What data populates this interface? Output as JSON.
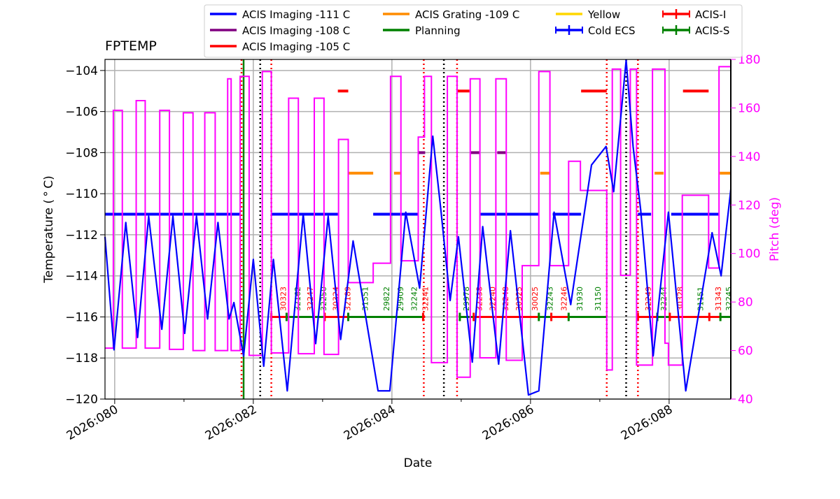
{
  "chart_data": {
    "type": "line",
    "title": "FPTEMP",
    "xlabel": "Date",
    "ylabel": "Temperature ($^\\circ$C)",
    "ylabel_display": "Temperature ( ° C)",
    "y2label": "Pitch (deg)",
    "xlim": [
      79.86,
      88.89
    ],
    "ylim": [
      -120,
      -103.46
    ],
    "y2lim": [
      40,
      180
    ],
    "grid": true,
    "legend_placement": "top",
    "x_ticks": [
      {
        "v": 80,
        "label": "2026:080"
      },
      {
        "v": 82,
        "label": "2026:082"
      },
      {
        "v": 84,
        "label": "2026:084"
      },
      {
        "v": 86,
        "label": "2026:086"
      },
      {
        "v": 88,
        "label": "2026:088"
      }
    ],
    "y_ticks": [
      -120,
      -118,
      -116,
      -114,
      -112,
      -110,
      -108,
      -106,
      -104
    ],
    "y_tick_labels": [
      "−120",
      "−118",
      "−116",
      "−114",
      "−112",
      "−110",
      "−108",
      "−106",
      "−104"
    ],
    "y2_ticks": [
      40,
      60,
      80,
      100,
      120,
      140,
      160,
      180
    ],
    "colors": {
      "temp": "#0000ff",
      "pitch": "#ff00ff",
      "m111": "#0000ff",
      "m108": "#800080",
      "m105": "#ff0000",
      "m109": "#ff8c00",
      "planning": "#008000",
      "yellow": "#ffd700",
      "acis_i": "#ff0000",
      "acis_s": "#008000"
    },
    "legend": [
      {
        "label": "ACIS Imaging -111 C",
        "color": "#0000ff",
        "style": "line"
      },
      {
        "label": "ACIS Imaging -108 C",
        "color": "#800080",
        "style": "line"
      },
      {
        "label": "ACIS Imaging -105 C",
        "color": "#ff0000",
        "style": "line"
      },
      {
        "label": "ACIS Grating -109 C",
        "color": "#ff8c00",
        "style": "line"
      },
      {
        "label": "Planning",
        "color": "#008000",
        "style": "line"
      },
      {
        "label": "Yellow",
        "color": "#ffd700",
        "style": "line"
      },
      {
        "label": "Cold ECS",
        "color": "#0000ff",
        "style": "errorbar"
      },
      {
        "label": "ACIS-I",
        "color": "#ff0000",
        "style": "errorbar"
      },
      {
        "label": "ACIS-S",
        "color": "#008000",
        "style": "errorbar"
      }
    ],
    "temperature": [
      [
        79.86,
        -112.1
      ],
      [
        79.99,
        -117.6
      ],
      [
        80.16,
        -111.4
      ],
      [
        80.33,
        -117.0
      ],
      [
        80.49,
        -111.1
      ],
      [
        80.68,
        -116.6
      ],
      [
        80.84,
        -111.1
      ],
      [
        81.01,
        -116.8
      ],
      [
        81.18,
        -111.1
      ],
      [
        81.34,
        -116.1
      ],
      [
        81.49,
        -111.4
      ],
      [
        81.65,
        -116.1
      ],
      [
        81.72,
        -115.3
      ],
      [
        81.86,
        -117.9
      ],
      [
        82.0,
        -113.2
      ],
      [
        82.15,
        -118.4
      ],
      [
        82.29,
        -113.2
      ],
      [
        82.49,
        -119.6
      ],
      [
        82.72,
        -111.0
      ],
      [
        82.9,
        -117.3
      ],
      [
        83.08,
        -111.1
      ],
      [
        83.26,
        -117.1
      ],
      [
        83.44,
        -112.3
      ],
      [
        83.8,
        -119.6
      ],
      [
        83.97,
        -119.6
      ],
      [
        84.2,
        -110.9
      ],
      [
        84.4,
        -114.6
      ],
      [
        84.59,
        -107.2
      ],
      [
        84.71,
        -110.9
      ],
      [
        84.84,
        -115.2
      ],
      [
        84.96,
        -112.1
      ],
      [
        85.16,
        -118.2
      ],
      [
        85.31,
        -111.6
      ],
      [
        85.54,
        -118.3
      ],
      [
        85.71,
        -111.8
      ],
      [
        85.97,
        -119.8
      ],
      [
        86.12,
        -119.6
      ],
      [
        86.34,
        -110.9
      ],
      [
        86.58,
        -115.4
      ],
      [
        86.88,
        -108.6
      ],
      [
        87.09,
        -107.7
      ],
      [
        87.2,
        -109.9
      ],
      [
        87.38,
        -103.5
      ],
      [
        87.48,
        -107.7
      ],
      [
        87.59,
        -110.8
      ],
      [
        87.77,
        -117.9
      ],
      [
        87.99,
        -110.9
      ],
      [
        88.24,
        -119.6
      ],
      [
        88.62,
        -111.9
      ],
      [
        88.75,
        -114.0
      ],
      [
        88.89,
        -109.8
      ]
    ],
    "pitch_steps": [
      [
        79.86,
        61
      ],
      [
        79.98,
        159
      ],
      [
        80.11,
        61
      ],
      [
        80.31,
        163
      ],
      [
        80.44,
        61
      ],
      [
        80.65,
        159
      ],
      [
        80.79,
        60.5
      ],
      [
        80.99,
        158
      ],
      [
        81.13,
        60
      ],
      [
        81.3,
        158
      ],
      [
        81.45,
        60
      ],
      [
        81.63,
        172
      ],
      [
        81.68,
        60
      ],
      [
        81.81,
        173
      ],
      [
        81.94,
        58
      ],
      [
        82.13,
        175
      ],
      [
        82.26,
        59
      ],
      [
        82.51,
        164
      ],
      [
        82.65,
        58.7
      ],
      [
        82.88,
        164
      ],
      [
        83.02,
        58.4
      ],
      [
        83.23,
        147
      ],
      [
        83.37,
        88
      ],
      [
        83.73,
        96
      ],
      [
        83.98,
        173
      ],
      [
        84.13,
        97
      ],
      [
        84.38,
        148
      ],
      [
        84.47,
        173
      ],
      [
        84.57,
        55
      ],
      [
        84.8,
        173
      ],
      [
        84.94,
        49
      ],
      [
        85.13,
        172
      ],
      [
        85.27,
        57
      ],
      [
        85.5,
        172
      ],
      [
        85.65,
        56
      ],
      [
        85.88,
        95
      ],
      [
        86.12,
        175
      ],
      [
        86.28,
        95
      ],
      [
        86.55,
        138
      ],
      [
        86.72,
        126
      ],
      [
        87.1,
        52
      ],
      [
        87.18,
        176
      ],
      [
        87.3,
        91
      ],
      [
        87.44,
        176
      ],
      [
        87.53,
        54
      ],
      [
        87.76,
        176
      ],
      [
        87.94,
        63
      ],
      [
        87.99,
        54
      ],
      [
        88.19,
        124
      ],
      [
        88.57,
        94
      ],
      [
        88.72,
        177
      ],
      [
        88.89,
        177
      ]
    ],
    "mode_segments": [
      {
        "mode": "m111",
        "t": -111,
        "spans": [
          [
            79.86,
            81.8
          ],
          [
            82.26,
            83.22
          ],
          [
            83.73,
            84.37
          ],
          [
            85.28,
            86.12
          ],
          [
            86.32,
            86.73
          ],
          [
            87.55,
            87.74
          ],
          [
            88.03,
            88.72
          ]
        ]
      },
      {
        "mode": "m108",
        "t": -108,
        "spans": [
          [
            84.38,
            84.48
          ],
          [
            85.14,
            85.26
          ],
          [
            85.52,
            85.64
          ]
        ]
      },
      {
        "mode": "m105",
        "t": -105,
        "spans": [
          [
            83.22,
            83.37
          ],
          [
            84.93,
            85.12
          ],
          [
            86.73,
            87.1
          ],
          [
            88.2,
            88.57
          ]
        ]
      },
      {
        "mode": "m109",
        "t": -109,
        "spans": [
          [
            83.37,
            83.73
          ],
          [
            84.03,
            84.12
          ],
          [
            86.14,
            86.27
          ],
          [
            87.79,
            87.92
          ],
          [
            88.73,
            88.89
          ]
        ]
      }
    ],
    "vlines": [
      {
        "day": 81.83,
        "color": "#ff0000",
        "style": "dotted"
      },
      {
        "day": 82.26,
        "color": "#ff0000",
        "style": "dotted"
      },
      {
        "day": 84.46,
        "color": "#ff0000",
        "style": "dotted"
      },
      {
        "day": 84.94,
        "color": "#ff0000",
        "style": "dotted"
      },
      {
        "day": 87.1,
        "color": "#ff0000",
        "style": "dotted"
      },
      {
        "day": 87.55,
        "color": "#ff0000",
        "style": "dotted"
      },
      {
        "day": 82.1,
        "color": "#000000",
        "style": "dotted"
      },
      {
        "day": 84.75,
        "color": "#000000",
        "style": "dotted"
      },
      {
        "day": 87.38,
        "color": "#000000",
        "style": "dotted"
      },
      {
        "day": 81.86,
        "color": "#008000",
        "style": "solid"
      }
    ],
    "obsids": [
      {
        "id": "30323",
        "day": 82.43,
        "inst": "I"
      },
      {
        "id": "32162",
        "day": 82.64,
        "inst": "S"
      },
      {
        "id": "32247",
        "day": 82.82,
        "inst": "I"
      },
      {
        "id": "32250",
        "day": 83.01,
        "inst": "S"
      },
      {
        "id": "30324",
        "day": 83.19,
        "inst": "I"
      },
      {
        "id": "32189",
        "day": 83.36,
        "inst": "I"
      },
      {
        "id": "31551",
        "day": 83.61,
        "inst": "S"
      },
      {
        "id": "29822",
        "day": 83.92,
        "inst": "S"
      },
      {
        "id": "29909",
        "day": 84.12,
        "inst": "S"
      },
      {
        "id": "32242",
        "day": 84.32,
        "inst": "S"
      },
      {
        "id": "32241",
        "day": 84.48,
        "inst": "I"
      },
      {
        "id": "29978",
        "day": 85.07,
        "inst": "S"
      },
      {
        "id": "32238",
        "day": 85.26,
        "inst": "I"
      },
      {
        "id": "32240",
        "day": 85.45,
        "inst": "I"
      },
      {
        "id": "32248",
        "day": 85.64,
        "inst": "I"
      },
      {
        "id": "30325",
        "day": 85.83,
        "inst": "I"
      },
      {
        "id": "30025",
        "day": 86.06,
        "inst": "I"
      },
      {
        "id": "32243",
        "day": 86.28,
        "inst": "S"
      },
      {
        "id": "32246",
        "day": 86.48,
        "inst": "I"
      },
      {
        "id": "31930",
        "day": 86.71,
        "inst": "S"
      },
      {
        "id": "31150",
        "day": 86.97,
        "inst": "S"
      },
      {
        "id": "32249",
        "day": 87.7,
        "inst": "I"
      },
      {
        "id": "32244",
        "day": 87.92,
        "inst": "S"
      },
      {
        "id": "30328",
        "day": 88.16,
        "inst": "I"
      },
      {
        "id": "31151",
        "day": 88.45,
        "inst": "S"
      },
      {
        "id": "31343",
        "day": 88.71,
        "inst": "I"
      },
      {
        "id": "32245",
        "day": 88.86,
        "inst": "S"
      }
    ],
    "inst_segments": [
      [
        82.26,
        82.48,
        "I"
      ],
      [
        82.48,
        83.03,
        "S"
      ],
      [
        83.03,
        83.37,
        "I"
      ],
      [
        83.37,
        84.45,
        "S"
      ],
      [
        84.45,
        84.48,
        "I"
      ],
      [
        84.98,
        85.18,
        "S"
      ],
      [
        85.18,
        86.12,
        "I"
      ],
      [
        86.12,
        86.3,
        "S"
      ],
      [
        86.3,
        86.55,
        "I"
      ],
      [
        86.55,
        87.1,
        "S"
      ],
      [
        87.55,
        87.83,
        "I"
      ],
      [
        87.83,
        88.01,
        "S"
      ],
      [
        88.01,
        88.58,
        "I"
      ],
      [
        88.58,
        88.74,
        "I"
      ],
      [
        88.74,
        88.89,
        "S"
      ]
    ],
    "inst_level": -116
  }
}
